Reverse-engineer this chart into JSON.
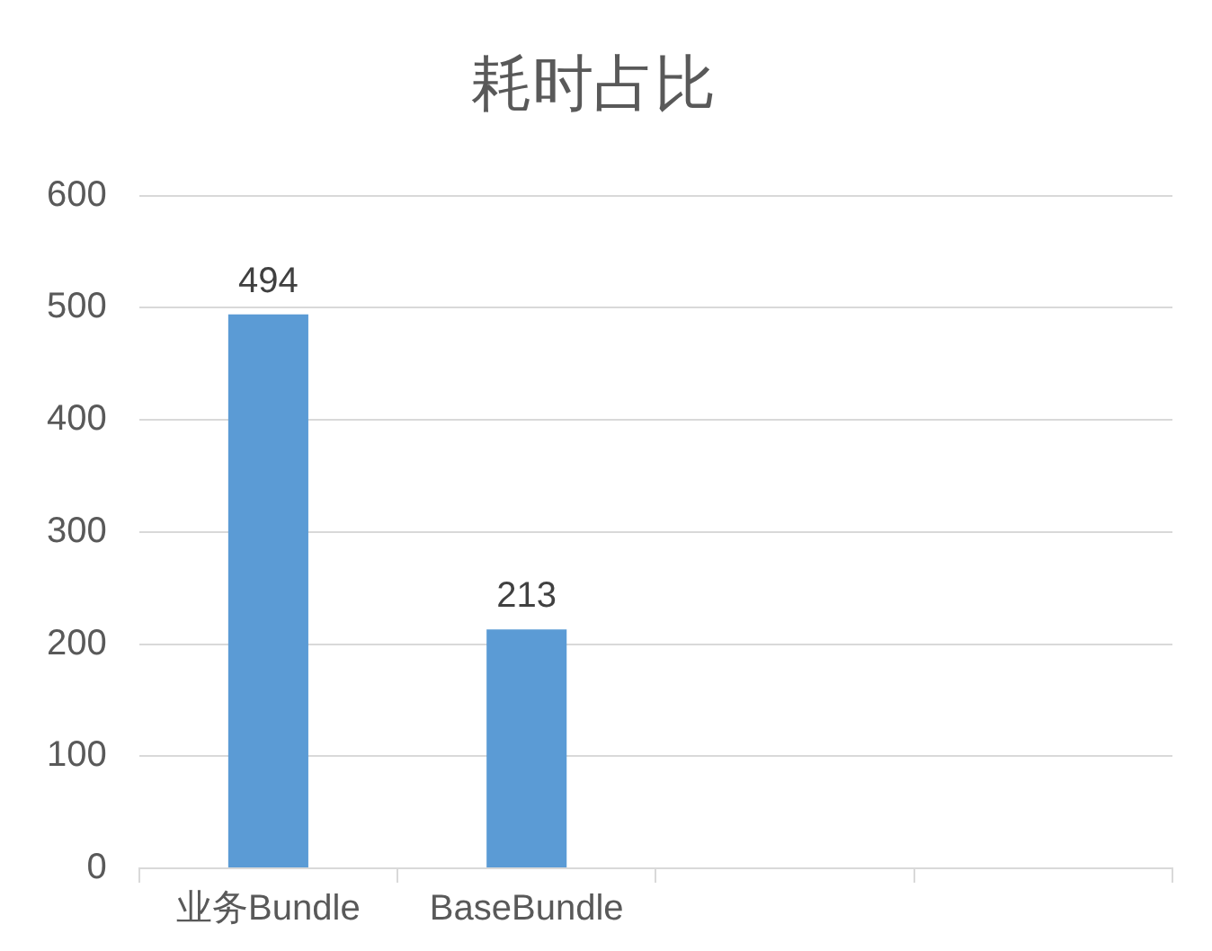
{
  "chart_data": {
    "type": "bar",
    "title": "耗时占比",
    "categories": [
      "业务Bundle",
      "BaseBundle",
      null,
      null
    ],
    "values": [
      494,
      213,
      null,
      null
    ],
    "color": "#5b9bd5",
    "ylim": [
      0,
      600
    ],
    "yticks": [
      0,
      100,
      200,
      300,
      400,
      500,
      600
    ],
    "grid": "y",
    "data_labels": true,
    "legend": false
  }
}
